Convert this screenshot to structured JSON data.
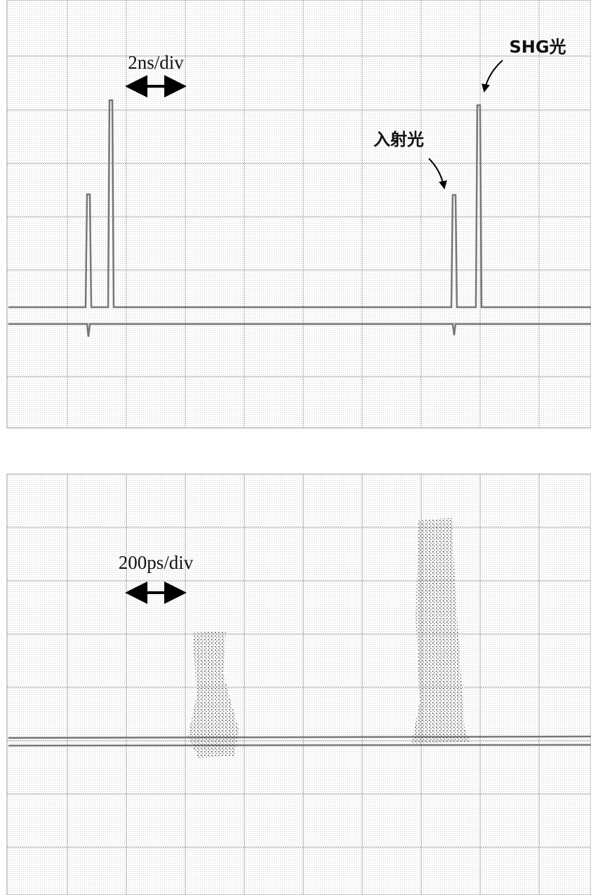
{
  "top_panel": {
    "scale_label": "2ns/div",
    "shg_label": "SHG光",
    "incident_label": "入射光"
  },
  "bottom_panel": {
    "scale_label": "200ps/div"
  }
}
